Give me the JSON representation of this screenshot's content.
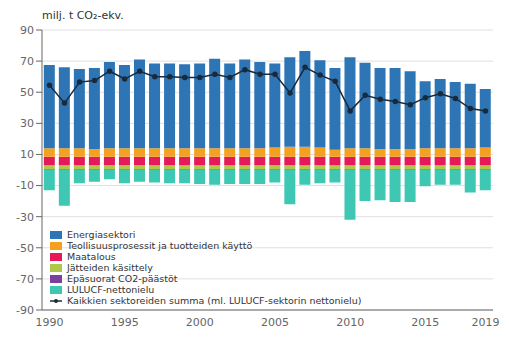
{
  "chart_data": {
    "type": "bar",
    "stacked": true,
    "grid": true,
    "legend": "lower left",
    "ylabel": "milj. t CO₂-ekv.",
    "categories": [
      "1990",
      null,
      null,
      null,
      null,
      "1995",
      null,
      null,
      null,
      null,
      "2000",
      null,
      null,
      null,
      null,
      "2005",
      null,
      null,
      null,
      null,
      "2010",
      null,
      null,
      null,
      null,
      "2015",
      null,
      null,
      null,
      "2019"
    ],
    "ylim": [
      -90,
      90
    ],
    "yticks": [
      -90,
      -70,
      -50,
      -30,
      -10,
      10,
      30,
      50,
      70,
      90
    ],
    "series": [
      {
        "name": "Energiasektori",
        "type": "bar",
        "color": "#2e75b6",
        "values": [
          53.5,
          52.0,
          51.0,
          52.0,
          55.5,
          53.5,
          57.0,
          54.5,
          54.5,
          54.0,
          54.5,
          57.5,
          54.5,
          57.0,
          55.5,
          54.0,
          57.5,
          61.5,
          56.0,
          52.5,
          58.5,
          55.0,
          52.0,
          52.0,
          50.0,
          43.0,
          44.5,
          42.5,
          41.5,
          37.5
        ]
      },
      {
        "name": "Teollisuusprosessit ja tuotteiden käyttö",
        "type": "bar",
        "color": "#f4a020",
        "values": [
          5.5,
          5.5,
          5.5,
          5.0,
          5.5,
          5.5,
          5.5,
          5.5,
          5.5,
          5.5,
          5.5,
          5.5,
          5.5,
          5.5,
          5.5,
          6.0,
          6.5,
          6.5,
          6.0,
          4.5,
          5.5,
          5.5,
          5.0,
          5.0,
          5.0,
          5.5,
          5.5,
          5.5,
          5.5,
          6.0
        ]
      },
      {
        "name": "Maatalous",
        "type": "bar",
        "color": "#e6195a",
        "values": [
          5.5,
          5.5,
          5.5,
          5.5,
          5.5,
          5.5,
          5.5,
          5.5,
          5.5,
          5.5,
          5.5,
          5.5,
          5.5,
          5.5,
          5.5,
          5.5,
          5.5,
          5.5,
          5.5,
          5.5,
          5.5,
          5.5,
          5.5,
          5.5,
          5.5,
          5.5,
          5.5,
          5.5,
          5.5,
          5.5
        ]
      },
      {
        "name": "Jätteiden käsittely",
        "type": "bar",
        "color": "#b0c84a",
        "values": [
          2.5,
          2.5,
          2.5,
          2.5,
          2.5,
          2.5,
          2.5,
          2.5,
          2.5,
          2.5,
          2.5,
          2.5,
          2.5,
          2.5,
          2.5,
          2.5,
          2.5,
          2.5,
          2.5,
          2.5,
          2.5,
          2.5,
          2.5,
          2.5,
          2.5,
          2.5,
          2.5,
          2.5,
          2.5,
          2.5
        ]
      },
      {
        "name": "Epäsuorat CO2-päästöt",
        "type": "bar",
        "color": "#7b3f9e",
        "values": [
          0.5,
          0.5,
          0.5,
          0.5,
          0.5,
          0.5,
          0.5,
          0.5,
          0.5,
          0.5,
          0.5,
          0.5,
          0.5,
          0.5,
          0.5,
          0.5,
          0.5,
          0.5,
          0.5,
          0.5,
          0.5,
          0.5,
          0.5,
          0.5,
          0.5,
          0.5,
          0.5,
          0.5,
          0.5,
          0.5
        ]
      },
      {
        "name": "LULUCF-nettonielu",
        "type": "bar",
        "color": "#3ec8b4",
        "values": [
          -13.0,
          -23.0,
          -8.5,
          -7.5,
          -6.0,
          -8.5,
          -7.5,
          -8.0,
          -8.5,
          -8.5,
          -9.0,
          -9.5,
          -9.0,
          -9.0,
          -9.0,
          -8.0,
          -22.0,
          -9.5,
          -8.5,
          -8.0,
          -32.0,
          -20.0,
          -19.5,
          -20.5,
          -20.5,
          -10.5,
          -9.5,
          -9.5,
          -14.5,
          -13.0
        ]
      },
      {
        "name": "Kaikkien sektoreiden summa (ml. LULUCF-sektorin nettonielu)",
        "type": "line",
        "marker": "circle",
        "color": "#1a2a3a",
        "values": [
          54.5,
          43.0,
          56.5,
          57.5,
          63.5,
          58.5,
          63.5,
          60.0,
          60.0,
          59.5,
          59.5,
          61.5,
          59.5,
          64.5,
          61.5,
          61.5,
          49.5,
          66.0,
          61.0,
          57.0,
          38.0,
          48.0,
          45.5,
          44.0,
          42.0,
          46.5,
          49.0,
          46.0,
          39.5,
          38.0
        ]
      }
    ]
  }
}
